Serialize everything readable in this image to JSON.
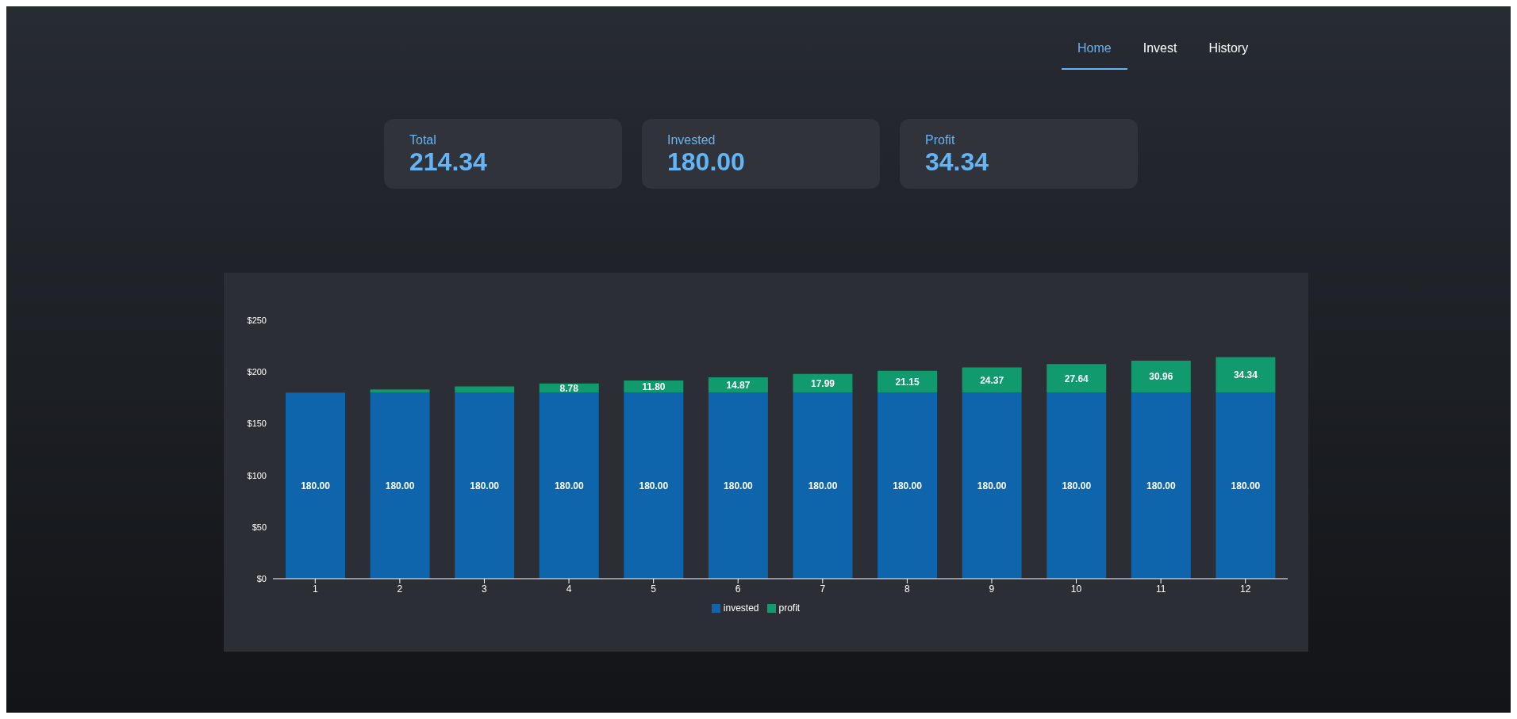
{
  "chart_data": [
    {
      "type": "other",
      "annotations": [
        "Home",
        "Invest",
        "History",
        "Total",
        "214.34",
        "Invested",
        "180.00",
        "Profit",
        "34.34"
      ]
    },
    {
      "type": "bar",
      "stacked": true,
      "categories": [
        "1",
        "2",
        "3",
        "4",
        "5",
        "6",
        "7",
        "8",
        "9",
        "10",
        "11",
        "12"
      ],
      "series": [
        {
          "name": "invested",
          "color": "#0e65ab",
          "values": [
            180,
            180,
            180,
            180,
            180,
            180,
            180,
            180,
            180,
            180,
            180,
            180
          ],
          "value_labels": [
            "180.00",
            "180.00",
            "180.00",
            "180.00",
            "180.00",
            "180.00",
            "180.00",
            "180.00",
            "180.00",
            "180.00",
            "180.00",
            "180.00"
          ]
        },
        {
          "name": "profit",
          "color": "#109a6e",
          "values": [
            0,
            3,
            6,
            8.78,
            11.8,
            14.87,
            17.99,
            21.15,
            24.37,
            27.64,
            30.96,
            34.34
          ],
          "value_labels": [
            null,
            null,
            null,
            "8.78",
            "11.80",
            "14.87",
            "17.99",
            "21.15",
            "24.37",
            "27.64",
            "30.96",
            "34.34"
          ]
        }
      ],
      "ylim": [
        0,
        250
      ],
      "yticks": [
        {
          "value": 0,
          "label": "$0"
        },
        {
          "value": 50,
          "label": "$50"
        },
        {
          "value": 100,
          "label": "$100"
        },
        {
          "value": 150,
          "label": "$150"
        },
        {
          "value": 200,
          "label": "$200"
        },
        {
          "value": 250,
          "label": "$250"
        }
      ],
      "grid": false,
      "legend": "bottom"
    }
  ]
}
